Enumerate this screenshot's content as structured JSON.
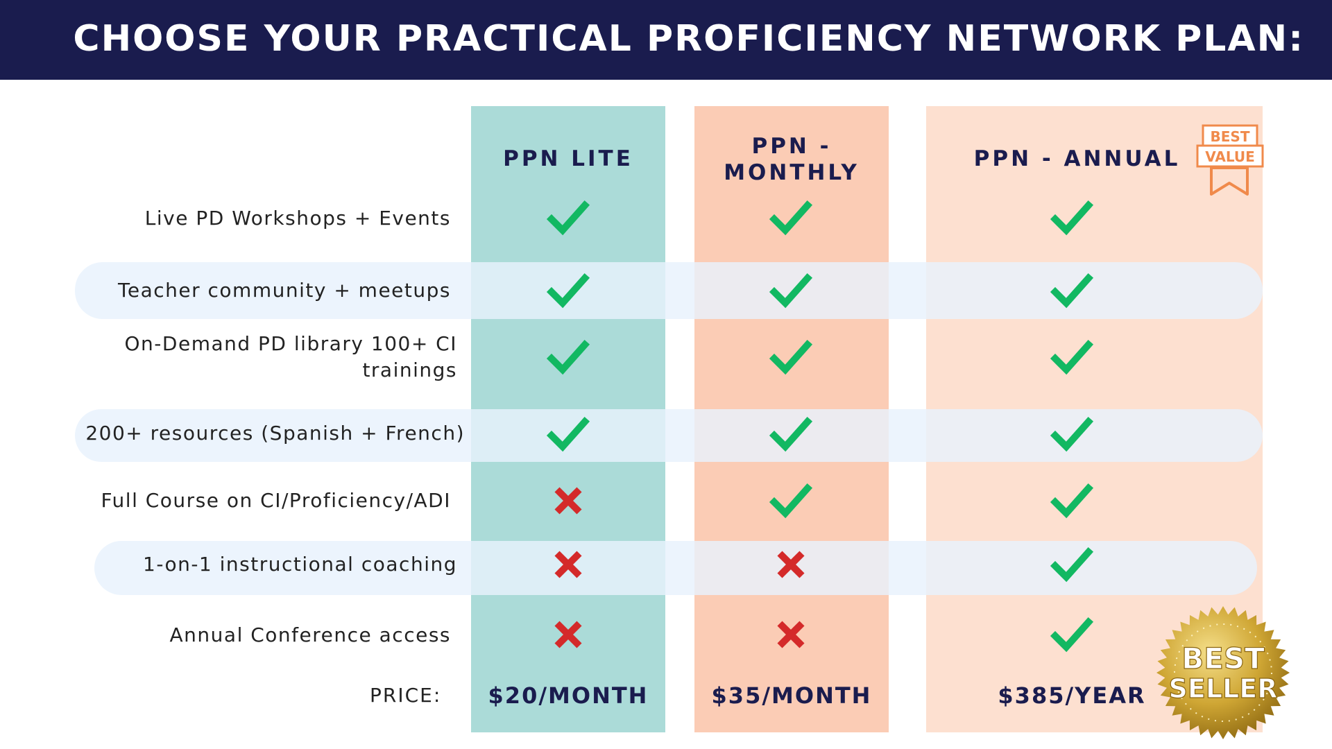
{
  "header": {
    "title": "CHOOSE YOUR PRACTICAL PROFICIENCY NETWORK PLAN:"
  },
  "plans": [
    {
      "name_line1": "PPN LITE",
      "name_line2": "",
      "price": "$20/MONTH"
    },
    {
      "name_line1": "PPN -",
      "name_line2": "MONTHLY",
      "price": "$35/MONTH"
    },
    {
      "name_line1": "PPN - ANNUAL",
      "name_line2": "",
      "price": "$385/YEAR"
    }
  ],
  "features": [
    {
      "line1": "Live PD Workshops + Events",
      "line2": "",
      "marks": [
        "check",
        "check",
        "check"
      ]
    },
    {
      "line1": "Teacher community + meetups",
      "line2": "",
      "marks": [
        "check",
        "check",
        "check"
      ]
    },
    {
      "line1": "On-Demand PD library 100+ CI",
      "line2": "trainings",
      "marks": [
        "check",
        "check",
        "check"
      ]
    },
    {
      "line1": "200+ resources (Spanish + French)",
      "line2": "",
      "marks": [
        "check",
        "check",
        "check"
      ]
    },
    {
      "line1": "Full Course on CI/Proficiency/ADI",
      "line2": "",
      "marks": [
        "cross",
        "check",
        "check"
      ]
    },
    {
      "line1": "1-on-1 instructional coaching",
      "line2": "",
      "marks": [
        "cross",
        "cross",
        "check"
      ]
    },
    {
      "line1": "Annual Conference access",
      "line2": "",
      "marks": [
        "cross",
        "cross",
        "check"
      ]
    }
  ],
  "price_label": "PRICE:",
  "badges": {
    "best_value_line1": "BEST",
    "best_value_line2": "VALUE",
    "best_seller_line1": "BEST",
    "best_seller_line2": "SELLER"
  },
  "icons": {
    "check": "check-icon",
    "cross": "cross-icon",
    "ribbon": "ribbon-icon",
    "seal": "gold-seal-icon"
  },
  "colors": {
    "header_bg": "#1a1c4e",
    "lite_col": "#abdbd8",
    "monthly_col": "#fbccb5",
    "annual_col": "#fde0d0",
    "check": "#12b862",
    "cross": "#d42a2a",
    "badge_orange": "#f08a4b",
    "gold": "#c9a227"
  }
}
